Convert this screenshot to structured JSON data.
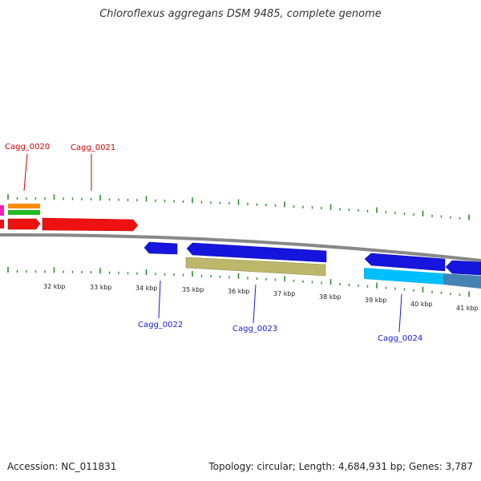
{
  "title": "Chloroflexus aggregans DSM 9485, complete genome",
  "footer": {
    "accession": "Accession: NC_011831",
    "topology": "Topology: circular; Length: 4,684,931 bp; Genes: 3,787"
  },
  "colors": {
    "tick": "#2e8b2e",
    "backbone": "#888888",
    "forward_label": "#cc0000",
    "reverse_label": "#1a1acc",
    "gene_red": "#ee1111",
    "gene_blue": "#1515dd",
    "gene_khaki": "#bdb76b",
    "gene_cyan": "#00bfff",
    "gene_steel": "#4682b4",
    "gene_orange": "#ff8c00",
    "gene_green": "#22bb22",
    "gene_magenta": "#ee22bb"
  },
  "kbp_labels": [
    "32 kbp",
    "33 kbp",
    "34 kbp",
    "35 kbp",
    "36 kbp",
    "37 kbp",
    "38 kbp",
    "39 kbp",
    "40 kbp",
    "41 kbp"
  ],
  "forward_gene_labels": [
    "Cagg_0020",
    "Cagg_0021"
  ],
  "reverse_gene_labels": [
    "Cagg_0022",
    "Cagg_0023",
    "Cagg_0024"
  ]
}
